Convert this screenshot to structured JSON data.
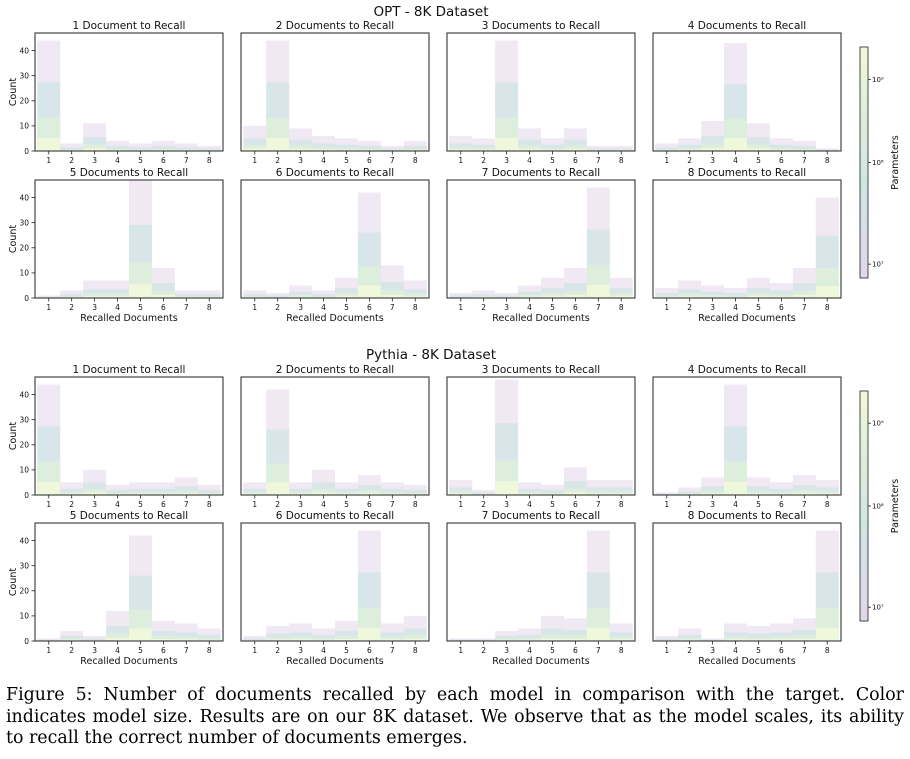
{
  "caption": "Figure 5: Number of documents recalled by each model in comparison with the target. Color indicates model size. Results are on our 8K dataset. We observe that as the model scales, its ability to recall the correct number of documents emerges.",
  "colorbar": {
    "label": "Parameters",
    "ticks": [
      "10⁷",
      "10⁸",
      "10⁹"
    ],
    "scale": "log"
  },
  "colors": {
    "small_models": "#e3d6ea",
    "mid_models": "#cfe6e4",
    "large_models": "#dff0d8",
    "largest_models": "#f2f8dc"
  },
  "chart_data": [
    {
      "type": "bar",
      "title": "OPT - 8K Dataset",
      "xlabel": "Recalled Documents",
      "ylabel": "Count",
      "categories": [
        "1",
        "2",
        "3",
        "4",
        "5",
        "6",
        "7",
        "8"
      ],
      "ylim": [
        0,
        47
      ],
      "yticks": [
        0,
        10,
        20,
        30,
        40
      ],
      "panels": [
        {
          "title": "1 Document to Recall",
          "target": 1,
          "values": [
            44,
            3,
            11,
            4,
            3,
            4,
            3,
            2
          ]
        },
        {
          "title": "2 Documents to Recall",
          "target": 2,
          "values": [
            10,
            44,
            9,
            6,
            5,
            4,
            2,
            4
          ]
        },
        {
          "title": "3 Documents to Recall",
          "target": 3,
          "values": [
            6,
            5,
            44,
            9,
            5,
            9,
            2,
            2
          ]
        },
        {
          "title": "4 Documents to Recall",
          "target": 4,
          "values": [
            3,
            5,
            12,
            43,
            11,
            5,
            4,
            1
          ]
        },
        {
          "title": "5 Documents to Recall",
          "target": 5,
          "values": [
            1,
            3,
            7,
            7,
            47,
            12,
            3,
            3
          ]
        },
        {
          "title": "6 Documents to Recall",
          "target": 6,
          "values": [
            3,
            2,
            5,
            3,
            8,
            42,
            13,
            7
          ]
        },
        {
          "title": "7 Documents to Recall",
          "target": 7,
          "values": [
            2,
            3,
            2,
            5,
            8,
            12,
            44,
            8
          ]
        },
        {
          "title": "8 Documents to Recall",
          "target": 8,
          "values": [
            4,
            7,
            5,
            4,
            8,
            6,
            12,
            40
          ]
        }
      ]
    },
    {
      "type": "bar",
      "title": "Pythia - 8K Dataset",
      "xlabel": "Recalled Documents",
      "ylabel": "Count",
      "categories": [
        "1",
        "2",
        "3",
        "4",
        "5",
        "6",
        "7",
        "8"
      ],
      "ylim": [
        0,
        47
      ],
      "yticks": [
        0,
        10,
        20,
        30,
        40
      ],
      "panels": [
        {
          "title": "1 Document to Recall",
          "target": 1,
          "values": [
            44,
            5,
            10,
            4,
            5,
            5,
            7,
            4
          ]
        },
        {
          "title": "2 Documents to Recall",
          "target": 2,
          "values": [
            5,
            42,
            5,
            10,
            5,
            8,
            5,
            4
          ]
        },
        {
          "title": "3 Documents to Recall",
          "target": 3,
          "values": [
            6,
            2,
            46,
            5,
            4,
            11,
            6,
            6
          ]
        },
        {
          "title": "4 Documents to Recall",
          "target": 4,
          "values": [
            1,
            3,
            7,
            44,
            7,
            5,
            8,
            6
          ]
        },
        {
          "title": "5 Documents to Recall",
          "target": 5,
          "values": [
            1,
            4,
            2,
            12,
            42,
            8,
            7,
            5
          ]
        },
        {
          "title": "6 Documents to Recall",
          "target": 6,
          "values": [
            2,
            6,
            7,
            5,
            8,
            44,
            7,
            10
          ]
        },
        {
          "title": "7 Documents to Recall",
          "target": 7,
          "values": [
            1,
            1,
            4,
            5,
            10,
            9,
            44,
            7
          ]
        },
        {
          "title": "8 Documents to Recall",
          "target": 8,
          "values": [
            2,
            5,
            1,
            7,
            6,
            7,
            9,
            44
          ]
        }
      ]
    }
  ]
}
